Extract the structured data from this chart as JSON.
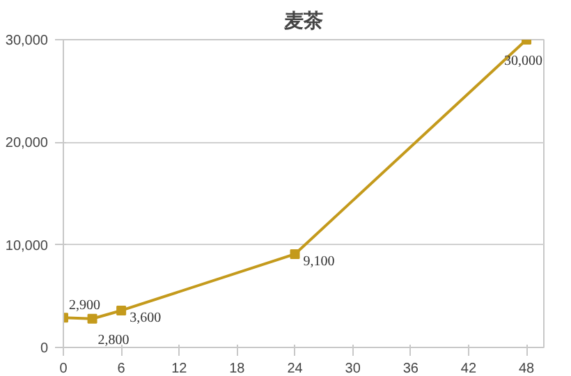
{
  "chart_data": {
    "type": "line",
    "title": "麦茶",
    "x": [
      0,
      3,
      6,
      24,
      48
    ],
    "series": [
      {
        "color": "#c49a1c",
        "values": [
          2900,
          2800,
          3600,
          9100,
          30000
        ],
        "value_labels": [
          "2,900",
          "2,800",
          "3,600",
          "9,100",
          "30,000"
        ]
      }
    ],
    "xlim": [
      0,
      49.8
    ],
    "xticks": [
      0,
      6,
      12,
      18,
      24,
      30,
      36,
      42,
      48
    ],
    "ylim": [
      0,
      30000
    ],
    "yticks": [
      {
        "value": 0,
        "label": "0"
      },
      {
        "value": 10000,
        "label": "10,000"
      },
      {
        "value": 20000,
        "label": "20,000"
      },
      {
        "value": 30000,
        "label": "30,000"
      }
    ],
    "grid": "y",
    "marker": "square",
    "line_style": "solid"
  }
}
